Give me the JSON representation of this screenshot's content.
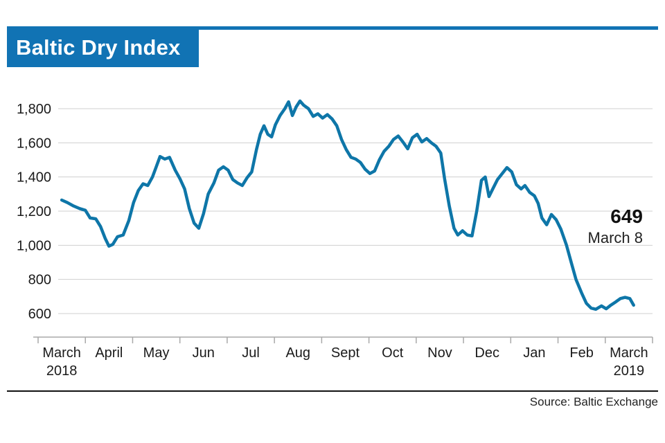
{
  "header": {
    "title": "Baltic Dry Index"
  },
  "annotation": {
    "value": "649",
    "date": "March 8"
  },
  "footer": {
    "source": "Source: Baltic Exchange"
  },
  "colors": {
    "accent": "#1173b4",
    "line": "#0e76a8",
    "grid": "#cfcfcf",
    "axis": "#a9a9a9",
    "text": "#1a1a1a"
  },
  "chart_data": {
    "type": "line",
    "title": "Baltic Dry Index",
    "xlabel": "",
    "ylabel": "",
    "ylim": [
      600,
      1800
    ],
    "grid": "horizontal",
    "legend": "none",
    "yticks": [
      {
        "value": 1800,
        "label": "1,800"
      },
      {
        "value": 1600,
        "label": "1,600"
      },
      {
        "value": 1400,
        "label": "1,400"
      },
      {
        "value": 1200,
        "label": "1,200"
      },
      {
        "value": 1000,
        "label": "1,000"
      },
      {
        "value": 800,
        "label": "800"
      },
      {
        "value": 600,
        "label": "600"
      }
    ],
    "months": [
      {
        "label": "March",
        "sublabel": "2018"
      },
      {
        "label": "April",
        "sublabel": ""
      },
      {
        "label": "May",
        "sublabel": ""
      },
      {
        "label": "Jun",
        "sublabel": ""
      },
      {
        "label": "Jul",
        "sublabel": ""
      },
      {
        "label": "Aug",
        "sublabel": ""
      },
      {
        "label": "Sept",
        "sublabel": ""
      },
      {
        "label": "Oct",
        "sublabel": ""
      },
      {
        "label": "Nov",
        "sublabel": ""
      },
      {
        "label": "Dec",
        "sublabel": ""
      },
      {
        "label": "Jan",
        "sublabel": ""
      },
      {
        "label": "Feb",
        "sublabel": ""
      },
      {
        "label": "March",
        "sublabel": "2019"
      }
    ],
    "points": [
      [
        0.0,
        1265
      ],
      [
        0.12,
        1250
      ],
      [
        0.25,
        1230
      ],
      [
        0.38,
        1215
      ],
      [
        0.5,
        1205
      ],
      [
        0.6,
        1160
      ],
      [
        0.72,
        1155
      ],
      [
        0.82,
        1110
      ],
      [
        0.92,
        1040
      ],
      [
        1.0,
        995
      ],
      [
        1.08,
        1005
      ],
      [
        1.18,
        1050
      ],
      [
        1.3,
        1060
      ],
      [
        1.42,
        1145
      ],
      [
        1.52,
        1250
      ],
      [
        1.62,
        1320
      ],
      [
        1.72,
        1360
      ],
      [
        1.82,
        1350
      ],
      [
        1.92,
        1400
      ],
      [
        2.0,
        1460
      ],
      [
        2.08,
        1520
      ],
      [
        2.18,
        1505
      ],
      [
        2.28,
        1515
      ],
      [
        2.4,
        1440
      ],
      [
        2.5,
        1390
      ],
      [
        2.6,
        1330
      ],
      [
        2.7,
        1215
      ],
      [
        2.8,
        1130
      ],
      [
        2.9,
        1100
      ],
      [
        3.0,
        1185
      ],
      [
        3.1,
        1300
      ],
      [
        3.22,
        1365
      ],
      [
        3.32,
        1440
      ],
      [
        3.42,
        1460
      ],
      [
        3.52,
        1440
      ],
      [
        3.62,
        1385
      ],
      [
        3.72,
        1365
      ],
      [
        3.82,
        1350
      ],
      [
        3.92,
        1395
      ],
      [
        4.02,
        1430
      ],
      [
        4.12,
        1560
      ],
      [
        4.2,
        1650
      ],
      [
        4.28,
        1700
      ],
      [
        4.36,
        1650
      ],
      [
        4.44,
        1635
      ],
      [
        4.52,
        1705
      ],
      [
        4.62,
        1760
      ],
      [
        4.72,
        1800
      ],
      [
        4.8,
        1840
      ],
      [
        4.88,
        1760
      ],
      [
        4.96,
        1810
      ],
      [
        5.04,
        1845
      ],
      [
        5.12,
        1820
      ],
      [
        5.22,
        1800
      ],
      [
        5.32,
        1755
      ],
      [
        5.42,
        1770
      ],
      [
        5.52,
        1745
      ],
      [
        5.62,
        1765
      ],
      [
        5.72,
        1740
      ],
      [
        5.82,
        1700
      ],
      [
        5.92,
        1620
      ],
      [
        6.02,
        1560
      ],
      [
        6.12,
        1515
      ],
      [
        6.22,
        1505
      ],
      [
        6.32,
        1485
      ],
      [
        6.42,
        1445
      ],
      [
        6.52,
        1420
      ],
      [
        6.62,
        1435
      ],
      [
        6.72,
        1500
      ],
      [
        6.82,
        1550
      ],
      [
        6.92,
        1580
      ],
      [
        7.02,
        1620
      ],
      [
        7.12,
        1640
      ],
      [
        7.22,
        1605
      ],
      [
        7.32,
        1565
      ],
      [
        7.42,
        1630
      ],
      [
        7.52,
        1650
      ],
      [
        7.62,
        1605
      ],
      [
        7.72,
        1625
      ],
      [
        7.82,
        1600
      ],
      [
        7.92,
        1580
      ],
      [
        8.02,
        1540
      ],
      [
        8.1,
        1390
      ],
      [
        8.2,
        1230
      ],
      [
        8.3,
        1100
      ],
      [
        8.38,
        1060
      ],
      [
        8.48,
        1085
      ],
      [
        8.58,
        1060
      ],
      [
        8.68,
        1055
      ],
      [
        8.78,
        1200
      ],
      [
        8.88,
        1380
      ],
      [
        8.96,
        1400
      ],
      [
        9.04,
        1285
      ],
      [
        9.12,
        1330
      ],
      [
        9.22,
        1385
      ],
      [
        9.32,
        1420
      ],
      [
        9.42,
        1455
      ],
      [
        9.52,
        1430
      ],
      [
        9.62,
        1355
      ],
      [
        9.72,
        1330
      ],
      [
        9.8,
        1350
      ],
      [
        9.9,
        1310
      ],
      [
        10.0,
        1290
      ],
      [
        10.08,
        1245
      ],
      [
        10.16,
        1160
      ],
      [
        10.26,
        1120
      ],
      [
        10.36,
        1180
      ],
      [
        10.46,
        1150
      ],
      [
        10.56,
        1095
      ],
      [
        10.68,
        1000
      ],
      [
        10.78,
        900
      ],
      [
        10.88,
        800
      ],
      [
        11.0,
        720
      ],
      [
        11.1,
        660
      ],
      [
        11.2,
        632
      ],
      [
        11.3,
        625
      ],
      [
        11.42,
        645
      ],
      [
        11.52,
        628
      ],
      [
        11.62,
        650
      ],
      [
        11.72,
        668
      ],
      [
        11.82,
        688
      ],
      [
        11.92,
        695
      ],
      [
        12.02,
        688
      ],
      [
        12.1,
        649
      ]
    ],
    "last_point": {
      "value": 649,
      "date": "March 8"
    }
  }
}
